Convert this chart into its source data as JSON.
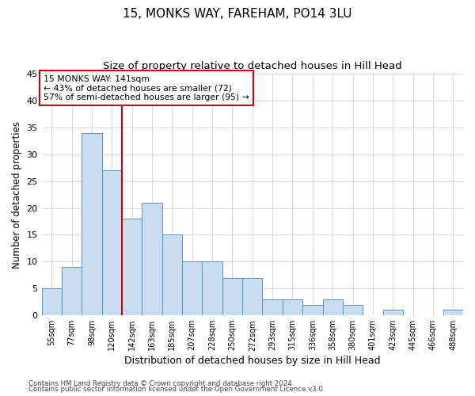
{
  "title": "15, MONKS WAY, FAREHAM, PO14 3LU",
  "subtitle": "Size of property relative to detached houses in Hill Head",
  "xlabel": "Distribution of detached houses by size in Hill Head",
  "ylabel": "Number of detached properties",
  "bar_labels": [
    "55sqm",
    "77sqm",
    "98sqm",
    "120sqm",
    "142sqm",
    "163sqm",
    "185sqm",
    "207sqm",
    "228sqm",
    "250sqm",
    "272sqm",
    "293sqm",
    "315sqm",
    "336sqm",
    "358sqm",
    "380sqm",
    "401sqm",
    "423sqm",
    "445sqm",
    "466sqm",
    "488sqm"
  ],
  "bar_values": [
    5,
    9,
    34,
    27,
    18,
    21,
    15,
    10,
    10,
    7,
    7,
    3,
    3,
    2,
    3,
    2,
    0,
    1,
    0,
    0,
    1
  ],
  "bar_color": "#c9ddf2",
  "bar_edge_color": "#5b8fc9",
  "property_size": "141sqm",
  "annotation_line1": "15 MONKS WAY: 141sqm",
  "annotation_line2": "← 43% of detached houses are smaller (72)",
  "annotation_line3": "57% of semi-detached houses are larger (95) →",
  "annotation_box_color": "#ffffff",
  "annotation_box_edge_color": "#cc0000",
  "vline_color": "#cc0000",
  "ylim": [
    0,
    45
  ],
  "yticks": [
    0,
    5,
    10,
    15,
    20,
    25,
    30,
    35,
    40,
    45
  ],
  "footer_line1": "Contains HM Land Registry data © Crown copyright and database right 2024.",
  "footer_line2": "Contains public sector information licensed under the Open Government Licence v3.0.",
  "title_fontsize": 11,
  "subtitle_fontsize": 9.5,
  "grid_color": "#d0d0d0",
  "background_color": "#ffffff",
  "fig_width": 6.0,
  "fig_height": 5.0
}
